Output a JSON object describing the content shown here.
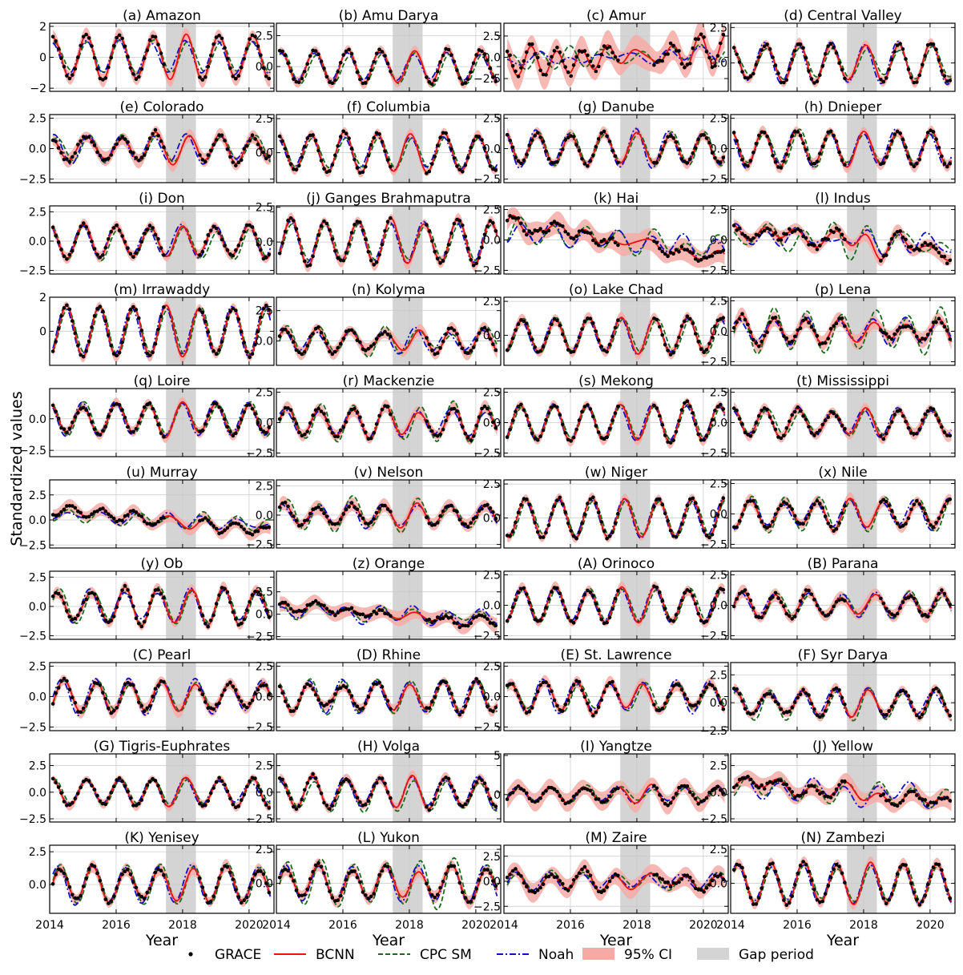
{
  "ylabel": "Standardized values",
  "xlabel": "Year",
  "xlim": [
    2014.0,
    2020.75
  ],
  "x_ticks": [
    "2014",
    "2016",
    "2018",
    "2020"
  ],
  "gap_period": [
    2017.5,
    2018.4
  ],
  "legend": [
    {
      "name": "GRACE",
      "style": "dots",
      "color": "#000000"
    },
    {
      "name": "BCNN",
      "style": "solid",
      "color": "#ee1111"
    },
    {
      "name": "CPC SM",
      "style": "dashed",
      "color": "#1a6b1a"
    },
    {
      "name": "Noah",
      "style": "dash-dot",
      "color": "#1010c8"
    },
    {
      "name": "95% CI",
      "style": "band",
      "color": "#f6aaa6"
    },
    {
      "name": "Gap period",
      "style": "band",
      "color": "#d4d4d4"
    }
  ],
  "chart_data": [
    {
      "type": "line",
      "title": "(a) Amazon",
      "ylim": [
        -2.2,
        2.2
      ],
      "y_ticks": [
        "2",
        "0",
        "−2"
      ],
      "phase": 0.1,
      "amp": 1.4,
      "ci": 0.45,
      "noise": 0.2,
      "cpc": {
        "amp": 1.0,
        "off": 0.05,
        "noise": 0.15
      },
      "noah": {
        "amp": 1.05,
        "off": 0.0,
        "noise": 0.15
      }
    },
    {
      "type": "line",
      "title": "(b) Amu Darya",
      "ylim": [
        -2.0,
        3.5
      ],
      "y_ticks": [
        "2.5",
        "0.0"
      ],
      "phase": 0.15,
      "amp": 1.3,
      "ci": 0.4,
      "noise": 0.2,
      "cpc": {
        "amp": 1.1,
        "off": -0.2,
        "noise": 0.2
      },
      "noah": {
        "amp": 1.0,
        "off": 0.0,
        "noise": 0.15
      }
    },
    {
      "type": "line",
      "title": "(c) Amur",
      "ylim": [
        -4.0,
        4.0
      ],
      "y_ticks": [
        "2.5",
        "0.0",
        "−2.5"
      ],
      "phase": 0.0,
      "amp": 0.4,
      "ci": 1.6,
      "noise": 1.1,
      "trend": 0.25,
      "cpc": {
        "amp": 0.6,
        "off": 0.0,
        "noise": 0.7
      },
      "noah": {
        "amp": 0.5,
        "off": 0.0,
        "noise": 0.6
      }
    },
    {
      "type": "line",
      "title": "(d) Central Valley",
      "ylim": [
        -2.0,
        2.8
      ],
      "y_ticks": [
        "2.5",
        "0.0"
      ],
      "phase": 0.05,
      "amp": 1.3,
      "ci": 0.35,
      "noise": 0.25,
      "cpc": {
        "amp": 1.0,
        "off": 0.0,
        "noise": 0.2
      },
      "noah": {
        "amp": 1.3,
        "off": 0.0,
        "noise": 0.25
      }
    },
    {
      "type": "line",
      "title": "(e) Colorado",
      "ylim": [
        -2.8,
        2.8
      ],
      "y_ticks": [
        "2.5",
        "0.0",
        "−2.5"
      ],
      "phase": 0.15,
      "amp": 1.0,
      "ci": 0.55,
      "noise": 0.45,
      "cpc": {
        "amp": 1.0,
        "off": 0.0,
        "noise": 0.3
      },
      "noah": {
        "amp": 1.0,
        "off": 0.0,
        "noise": 0.3
      }
    },
    {
      "type": "line",
      "title": "(f) Columbia",
      "ylim": [
        -2.2,
        2.8
      ],
      "y_ticks": [
        "2.5",
        "0.0"
      ],
      "phase": 0.05,
      "amp": 1.35,
      "ci": 0.35,
      "noise": 0.2,
      "cpc": {
        "amp": 1.1,
        "off": 0.0,
        "noise": 0.15
      },
      "noah": {
        "amp": 1.2,
        "off": 0.0,
        "noise": 0.2
      }
    },
    {
      "type": "line",
      "title": "(g) Danube",
      "ylim": [
        -2.8,
        2.8
      ],
      "y_ticks": [
        "2.5",
        "0.0",
        "−2.5"
      ],
      "phase": 0.0,
      "amp": 1.25,
      "ci": 0.45,
      "noise": 0.25,
      "cpc": {
        "amp": 1.3,
        "off": 0.0,
        "noise": 0.3
      },
      "noah": {
        "amp": 1.4,
        "off": 0.0,
        "noise": 0.3
      }
    },
    {
      "type": "line",
      "title": "(h) Dnieper",
      "ylim": [
        -2.8,
        2.8
      ],
      "y_ticks": [
        "2.5",
        "0.0",
        "−2.5"
      ],
      "phase": 0.0,
      "amp": 1.4,
      "ci": 0.45,
      "noise": 0.25,
      "cpc": {
        "amp": 1.3,
        "off": 0.0,
        "noise": 0.3
      },
      "noah": {
        "amp": 1.4,
        "off": 0.0,
        "noise": 0.3
      }
    },
    {
      "type": "line",
      "title": "(i) Don",
      "ylim": [
        -2.8,
        3.0
      ],
      "y_ticks": [
        "2.5",
        "0.0",
        "−2.5"
      ],
      "phase": 0.0,
      "amp": 1.3,
      "ci": 0.45,
      "noise": 0.3,
      "cpc": {
        "amp": 1.3,
        "off": -0.2,
        "noise": 0.3
      },
      "noah": {
        "amp": 1.3,
        "off": 0.0,
        "noise": 0.3
      }
    },
    {
      "type": "line",
      "title": "(j) Ganges Brahmaputra",
      "ylim": [
        -2.3,
        2.6
      ],
      "y_ticks": [
        "2.5",
        "0.0"
      ],
      "phase": 0.45,
      "amp": 1.55,
      "ci": 0.4,
      "noise": 0.2,
      "cpc": {
        "amp": 1.3,
        "off": 0.0,
        "noise": 0.15
      },
      "noah": {
        "amp": 1.4,
        "off": 0.0,
        "noise": 0.15
      }
    },
    {
      "type": "line",
      "title": "(k) Hai",
      "ylim": [
        -2.8,
        2.8
      ],
      "y_ticks": [
        "2.5",
        "0.0",
        "−2.5"
      ],
      "phase": 0.4,
      "amp": 0.3,
      "ci": 0.85,
      "noise": 0.5,
      "trend": -0.45,
      "cpc": {
        "amp": 0.8,
        "off": 0.0,
        "noise": 0.8
      },
      "noah": {
        "amp": 0.7,
        "off": 0.0,
        "noise": 0.8
      }
    },
    {
      "type": "line",
      "title": "(l) Indus",
      "ylim": [
        -2.8,
        2.8
      ],
      "y_ticks": [
        "2.5",
        "0.0",
        "−2.5"
      ],
      "phase": 0.1,
      "amp": 0.5,
      "ci": 0.55,
      "noise": 0.6,
      "trend": -0.25,
      "cpc": {
        "amp": 0.7,
        "off": 0.0,
        "noise": 0.8
      },
      "noah": {
        "amp": 0.6,
        "off": 0.0,
        "noise": 0.7
      }
    },
    {
      "type": "line",
      "title": "(m) Irrawaddy",
      "ylim": [
        -2.0,
        2.0
      ],
      "y_ticks": [
        "2",
        "0"
      ],
      "phase": 0.5,
      "amp": 1.45,
      "ci": 0.3,
      "noise": 0.15,
      "cpc": {
        "amp": 1.35,
        "off": 0.0,
        "noise": 0.1
      },
      "noah": {
        "amp": 1.4,
        "off": 0.0,
        "noise": 0.1
      }
    },
    {
      "type": "line",
      "title": "(n) Kolyma",
      "ylim": [
        -2.0,
        3.6
      ],
      "y_ticks": [
        "2.5",
        "0.0"
      ],
      "phase": 0.25,
      "amp": 0.9,
      "ci": 0.5,
      "noise": 0.35,
      "cpc": {
        "amp": 1.0,
        "off": 0.0,
        "noise": 0.4
      },
      "noah": {
        "amp": 1.0,
        "off": 0.0,
        "noise": 0.35
      }
    },
    {
      "type": "line",
      "title": "(o) Lake Chad",
      "ylim": [
        -2.2,
        2.8
      ],
      "y_ticks": [
        "2.5",
        "0.0"
      ],
      "phase": 0.55,
      "amp": 1.3,
      "ci": 0.4,
      "noise": 0.25,
      "cpc": {
        "amp": 1.2,
        "off": 0.0,
        "noise": 0.2
      },
      "noah": {
        "amp": 1.25,
        "off": 0.0,
        "noise": 0.2
      }
    },
    {
      "type": "line",
      "title": "(p) Lena",
      "ylim": [
        -2.8,
        2.8
      ],
      "y_ticks": [
        "2.5",
        "0.0",
        "−2.5"
      ],
      "phase": 0.3,
      "amp": 1.0,
      "ci": 0.6,
      "noise": 0.45,
      "cpc": {
        "amp": 1.5,
        "off": 0.0,
        "noise": 0.5
      },
      "noah": {
        "amp": 1.0,
        "off": 0.0,
        "noise": 0.4
      }
    },
    {
      "type": "line",
      "title": "(q) Loire",
      "ylim": [
        -3.0,
        2.4
      ],
      "y_ticks": [
        "0.0",
        "−2.5"
      ],
      "phase": 0.0,
      "amp": 1.2,
      "ci": 0.4,
      "noise": 0.3,
      "cpc": {
        "amp": 1.2,
        "off": 0.0,
        "noise": 0.25
      },
      "noah": {
        "amp": 1.3,
        "off": 0.0,
        "noise": 0.25
      }
    },
    {
      "type": "line",
      "title": "(r) Mackenzie",
      "ylim": [
        -2.8,
        2.8
      ],
      "y_ticks": [
        "2.5",
        "0.0",
        "−2.5"
      ],
      "phase": 0.3,
      "amp": 1.1,
      "ci": 0.5,
      "noise": 0.35,
      "cpc": {
        "amp": 1.5,
        "off": 0.0,
        "noise": 0.45
      },
      "noah": {
        "amp": 1.1,
        "off": 0.0,
        "noise": 0.35
      }
    },
    {
      "type": "line",
      "title": "(s) Mekong",
      "ylim": [
        -2.8,
        2.8
      ],
      "y_ticks": [
        "2.5",
        "0.0",
        "−2.5"
      ],
      "phase": 0.5,
      "amp": 1.5,
      "ci": 0.4,
      "noise": 0.2,
      "cpc": {
        "amp": 1.35,
        "off": 0.0,
        "noise": 0.15
      },
      "noah": {
        "amp": 1.5,
        "off": 0.0,
        "noise": 0.2
      }
    },
    {
      "type": "line",
      "title": "(t) Mississippi",
      "ylim": [
        -2.8,
        2.8
      ],
      "y_ticks": [
        "2.5",
        "0.0",
        "−2.5"
      ],
      "phase": 0.05,
      "amp": 1.1,
      "ci": 0.45,
      "noise": 0.3,
      "cpc": {
        "amp": 1.1,
        "off": 0.0,
        "noise": 0.3
      },
      "noah": {
        "amp": 1.1,
        "off": 0.0,
        "noise": 0.3
      }
    },
    {
      "type": "line",
      "title": "(u) Murray",
      "ylim": [
        -2.8,
        4.0
      ],
      "y_ticks": [
        "2.5",
        "0.0",
        "−2.5"
      ],
      "phase": 0.6,
      "amp": 0.5,
      "ci": 0.6,
      "noise": 0.3,
      "trend": -0.35,
      "cpc": {
        "amp": 0.6,
        "off": 0.0,
        "noise": 0.3
      },
      "noah": {
        "amp": 0.5,
        "off": 0.0,
        "noise": 0.3
      }
    },
    {
      "type": "line",
      "title": "(v) Nelson",
      "ylim": [
        -2.8,
        3.0
      ],
      "y_ticks": [
        "2.5",
        "0.0",
        "−2.5"
      ],
      "phase": 0.25,
      "amp": 0.9,
      "ci": 0.55,
      "noise": 0.35,
      "cpc": {
        "amp": 1.1,
        "off": 0.0,
        "noise": 0.4
      },
      "noah": {
        "amp": 0.9,
        "off": 0.0,
        "noise": 0.3
      }
    },
    {
      "type": "line",
      "title": "(w) Niger",
      "ylim": [
        -2.2,
        2.8
      ],
      "y_ticks": [
        "2.5",
        "0.0"
      ],
      "phase": 0.65,
      "amp": 1.45,
      "ci": 0.35,
      "noise": 0.2,
      "cpc": {
        "amp": 1.3,
        "off": 0.0,
        "noise": 0.15
      },
      "noah": {
        "amp": 1.4,
        "off": 0.0,
        "noise": 0.15
      }
    },
    {
      "type": "line",
      "title": "(x) Nile",
      "ylim": [
        -2.8,
        2.8
      ],
      "y_ticks": [
        "2.5",
        "0.0",
        "−2.5"
      ],
      "phase": 0.6,
      "amp": 1.15,
      "ci": 0.45,
      "noise": 0.3,
      "cpc": {
        "amp": 1.3,
        "off": 0.0,
        "noise": 0.25
      },
      "noah": {
        "amp": 1.1,
        "off": 0.0,
        "noise": 0.25
      }
    },
    {
      "type": "line",
      "title": "(y) Ob",
      "ylim": [
        -2.8,
        3.0
      ],
      "y_ticks": [
        "2.5",
        "0.0",
        "−2.5"
      ],
      "phase": 0.25,
      "amp": 1.4,
      "ci": 0.45,
      "noise": 0.3,
      "cpc": {
        "amp": 1.4,
        "off": 0.0,
        "noise": 0.35
      },
      "noah": {
        "amp": 1.3,
        "off": 0.0,
        "noise": 0.3
      }
    },
    {
      "type": "line",
      "title": "(z) Orange",
      "ylim": [
        -2.8,
        4.8
      ],
      "y_ticks": [
        "2.5",
        "0.0",
        "−2.5"
      ],
      "phase": 0.15,
      "amp": 0.5,
      "ci": 0.8,
      "noise": 0.5,
      "trend": -0.3,
      "cpc": {
        "amp": 0.8,
        "off": 0.0,
        "noise": 0.5
      },
      "noah": {
        "amp": 0.8,
        "off": 0.0,
        "noise": 0.5
      }
    },
    {
      "type": "line",
      "title": "(A) Orinoco",
      "ylim": [
        -2.8,
        2.8
      ],
      "y_ticks": [
        "2.5",
        "0.0",
        "−2.5"
      ],
      "phase": 0.55,
      "amp": 1.4,
      "ci": 0.4,
      "noise": 0.2,
      "cpc": {
        "amp": 1.3,
        "off": 0.0,
        "noise": 0.15
      },
      "noah": {
        "amp": 1.35,
        "off": 0.0,
        "noise": 0.15
      }
    },
    {
      "type": "line",
      "title": "(B) Parana",
      "ylim": [
        -2.8,
        2.8
      ],
      "y_ticks": [
        "2.5",
        "0.0",
        "−2.5"
      ],
      "phase": 0.35,
      "amp": 0.9,
      "ci": 0.5,
      "noise": 0.4,
      "cpc": {
        "amp": 0.9,
        "off": 0.0,
        "noise": 0.35
      },
      "noah": {
        "amp": 1.0,
        "off": 0.0,
        "noise": 0.35
      }
    },
    {
      "type": "line",
      "title": "(C) Pearl",
      "ylim": [
        -2.8,
        2.8
      ],
      "y_ticks": [
        "2.5",
        "0.0",
        "−2.5"
      ],
      "phase": 0.4,
      "amp": 1.2,
      "ci": 0.5,
      "noise": 0.4,
      "cpc": {
        "amp": 1.1,
        "off": 0.0,
        "noise": 0.35
      },
      "noah": {
        "amp": 1.3,
        "off": 0.0,
        "noise": 0.35
      }
    },
    {
      "type": "line",
      "title": "(D) Rhine",
      "ylim": [
        -2.8,
        2.8
      ],
      "y_ticks": [
        "2.5",
        "0.0",
        "−2.5"
      ],
      "phase": 0.0,
      "amp": 1.2,
      "ci": 0.4,
      "noise": 0.3,
      "cpc": {
        "amp": 1.3,
        "off": 0.0,
        "noise": 0.3
      },
      "noah": {
        "amp": 1.3,
        "off": 0.0,
        "noise": 0.25
      }
    },
    {
      "type": "line",
      "title": "(E) St. Lawrence",
      "ylim": [
        -2.8,
        2.8
      ],
      "y_ticks": [
        "2.5",
        "0.0",
        "−2.5"
      ],
      "phase": 0.2,
      "amp": 1.1,
      "ci": 0.45,
      "noise": 0.3,
      "cpc": {
        "amp": 1.1,
        "off": 0.0,
        "noise": 0.3
      },
      "noah": {
        "amp": 1.2,
        "off": 0.0,
        "noise": 0.3
      }
    },
    {
      "type": "line",
      "title": "(F) Syr Darya",
      "ylim": [
        -2.5,
        3.6
      ],
      "y_ticks": [
        "2.5",
        "0.0",
        "−2.5"
      ],
      "phase": 0.15,
      "amp": 1.2,
      "ci": 0.45,
      "noise": 0.3,
      "cpc": {
        "amp": 1.3,
        "off": -0.2,
        "noise": 0.3
      },
      "noah": {
        "amp": 1.1,
        "off": 0.0,
        "noise": 0.25
      }
    },
    {
      "type": "line",
      "title": "(G) Tigris-Euphrates",
      "ylim": [
        -2.8,
        3.6
      ],
      "y_ticks": [
        "2.5",
        "0.0",
        "−2.5"
      ],
      "phase": 0.1,
      "amp": 1.3,
      "ci": 0.4,
      "noise": 0.3,
      "cpc": {
        "amp": 1.2,
        "off": 0.0,
        "noise": 0.25
      },
      "noah": {
        "amp": 1.2,
        "off": 0.0,
        "noise": 0.25
      }
    },
    {
      "type": "line",
      "title": "(H) Volga",
      "ylim": [
        -2.8,
        3.6
      ],
      "y_ticks": [
        "2.5",
        "0.0",
        "−2.5"
      ],
      "phase": 0.1,
      "amp": 1.4,
      "ci": 0.45,
      "noise": 0.3,
      "cpc": {
        "amp": 1.4,
        "off": -0.3,
        "noise": 0.35
      },
      "noah": {
        "amp": 1.35,
        "off": 0.0,
        "noise": 0.3
      }
    },
    {
      "type": "line",
      "title": "(I) Yangtze",
      "ylim": [
        -3.5,
        5.2
      ],
      "y_ticks": [
        "5",
        "0"
      ],
      "phase": 0.45,
      "amp": 1.0,
      "ci": 1.1,
      "noise": 0.4,
      "cpc": {
        "amp": 0.9,
        "off": 0.0,
        "noise": 0.35
      },
      "noah": {
        "amp": 1.0,
        "off": 0.0,
        "noise": 0.35
      }
    },
    {
      "type": "line",
      "title": "(J) Yellow",
      "ylim": [
        -2.8,
        3.6
      ],
      "y_ticks": [
        "2.5",
        "0.0",
        "−2.5"
      ],
      "phase": 0.45,
      "amp": 0.5,
      "ci": 0.8,
      "noise": 0.5,
      "trend": -0.3,
      "cpc": {
        "amp": 0.8,
        "off": 0.0,
        "noise": 0.6
      },
      "noah": {
        "amp": 0.8,
        "off": 0.0,
        "noise": 0.7
      }
    },
    {
      "type": "line",
      "title": "(K) Yenisey",
      "ylim": [
        -2.2,
        3.0
      ],
      "y_ticks": [
        "2.5",
        "0.0"
      ],
      "phase": 0.3,
      "amp": 1.4,
      "ci": 0.45,
      "noise": 0.3,
      "cpc": {
        "amp": 1.3,
        "off": 0.0,
        "noise": 0.35
      },
      "noah": {
        "amp": 1.4,
        "off": 0.0,
        "noise": 0.3
      }
    },
    {
      "type": "line",
      "title": "(L) Yukon",
      "ylim": [
        -2.2,
        2.8
      ],
      "y_ticks": [
        "2.5",
        "0.0"
      ],
      "phase": 0.3,
      "amp": 1.3,
      "ci": 0.45,
      "noise": 0.3,
      "cpc": {
        "amp": 1.6,
        "off": 0.0,
        "noise": 0.4
      },
      "noah": {
        "amp": 1.3,
        "off": 0.0,
        "noise": 0.35
      }
    },
    {
      "type": "line",
      "title": "(M) Zaire",
      "ylim": [
        -3.2,
        3.6
      ],
      "y_ticks": [
        "2.5",
        "0.0",
        "−2.5"
      ],
      "phase": 0.4,
      "amp": 0.7,
      "ci": 0.9,
      "noise": 0.45,
      "cpc": {
        "amp": 0.8,
        "off": 0.0,
        "noise": 0.45
      },
      "noah": {
        "amp": 0.8,
        "off": 0.0,
        "noise": 0.45
      }
    },
    {
      "type": "line",
      "title": "(N) Zambezi",
      "ylim": [
        -2.2,
        2.8
      ],
      "y_ticks": [
        "2.5",
        "0.0"
      ],
      "phase": 0.2,
      "amp": 1.4,
      "ci": 0.4,
      "noise": 0.2,
      "cpc": {
        "amp": 1.3,
        "off": 0.0,
        "noise": 0.2
      },
      "noah": {
        "amp": 1.35,
        "off": 0.0,
        "noise": 0.2
      }
    }
  ]
}
